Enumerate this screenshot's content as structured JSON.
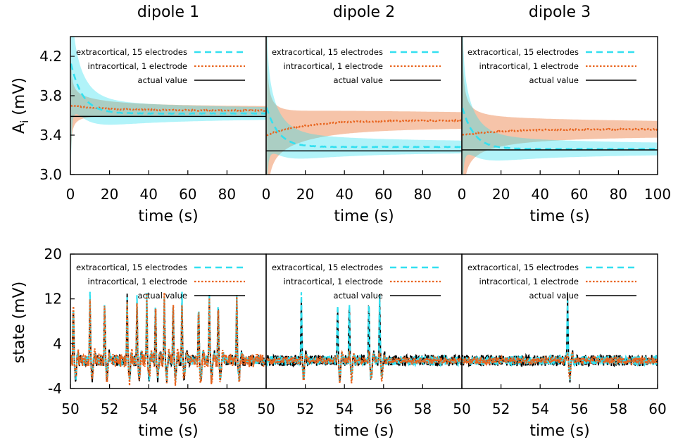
{
  "chart_data": {
    "type": "line",
    "titles": [
      "dipole 1",
      "dipole 2",
      "dipole 3"
    ],
    "legend": {
      "placement": "top-right",
      "entries": [
        {
          "label": "extracortical, 15 electrodes",
          "color": "#33e0f0",
          "style": "dashed"
        },
        {
          "label": "intracortical, 1 electrode",
          "color": "#e8641e",
          "style": "dotted"
        },
        {
          "label": "actual value",
          "color": "#000000",
          "style": "solid"
        }
      ]
    },
    "top_row": {
      "ylabel": "A",
      "ylabel_sub": "i",
      "ylabel_unit": " (mV)",
      "xlabel": "time (s)",
      "ylim": [
        3.0,
        4.4
      ],
      "xlim": [
        0,
        100
      ],
      "yticks": [
        3.0,
        3.4,
        3.8,
        4.2
      ],
      "ytick_labels": [
        "3.0",
        "3.4",
        "3.8",
        "4.2"
      ],
      "xtick_labels": [
        [
          "0",
          "20",
          "40",
          "60",
          "80"
        ],
        [
          "0",
          "20",
          "40",
          "60",
          "80"
        ],
        [
          "0",
          "20",
          "40",
          "60",
          "80",
          "100"
        ]
      ],
      "dipoles": [
        {
          "actual": 3.59,
          "extra_final": 3.62,
          "extra_start": 4.15,
          "intra_final": 3.65,
          "intra_start": 3.7
        },
        {
          "actual": 3.24,
          "extra_final": 3.28,
          "extra_start": 3.7,
          "intra_final": 3.55,
          "intra_start": 3.4
        },
        {
          "actual": 3.25,
          "extra_final": 3.26,
          "extra_start": 3.7,
          "intra_final": 3.46,
          "intra_start": 3.4
        }
      ]
    },
    "bottom_row": {
      "ylabel": "state (mV)",
      "xlabel": "time (s)",
      "ylim": [
        -4,
        20
      ],
      "xlim": [
        50,
        60
      ],
      "yticks": [
        -4,
        4,
        12,
        20
      ],
      "ytick_labels": [
        "-4",
        "4",
        "12",
        "20"
      ],
      "xtick_labels": [
        [
          "50",
          "52",
          "54",
          "56",
          "58"
        ],
        [
          "50",
          "52",
          "54",
          "56",
          "58"
        ],
        [
          "50",
          "52",
          "54",
          "56",
          "58",
          "60"
        ]
      ],
      "spike_times": [
        [
          50.15,
          51.0,
          51.75,
          52.9,
          53.4,
          53.9,
          54.35,
          54.8,
          55.25,
          55.7,
          56.55,
          57.1,
          57.55,
          58.5
        ],
        [
          51.8,
          53.65,
          54.25,
          55.25,
          55.8
        ],
        [
          55.4
        ]
      ],
      "spike_peak": 11
    }
  }
}
